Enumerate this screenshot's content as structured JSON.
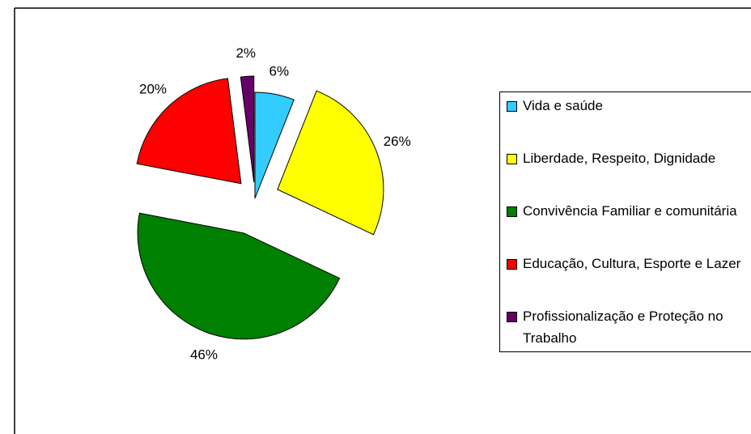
{
  "chart_data": {
    "type": "pie",
    "categories": [
      "Vida e saúde",
      "Liberdade, Respeito, Dignidade",
      "Convivência Familiar e comunitária",
      "Educação, Cultura, Esporte e Lazer",
      "Profissionalização e Proteção no Trabalho"
    ],
    "values": [
      6,
      26,
      46,
      20,
      2
    ],
    "value_labels": [
      "6%",
      "26%",
      "46%",
      "20%",
      "2%"
    ],
    "colors": [
      "#33ccff",
      "#ffff00",
      "#008000",
      "#ff0000",
      "#660066"
    ],
    "legend": "right"
  }
}
